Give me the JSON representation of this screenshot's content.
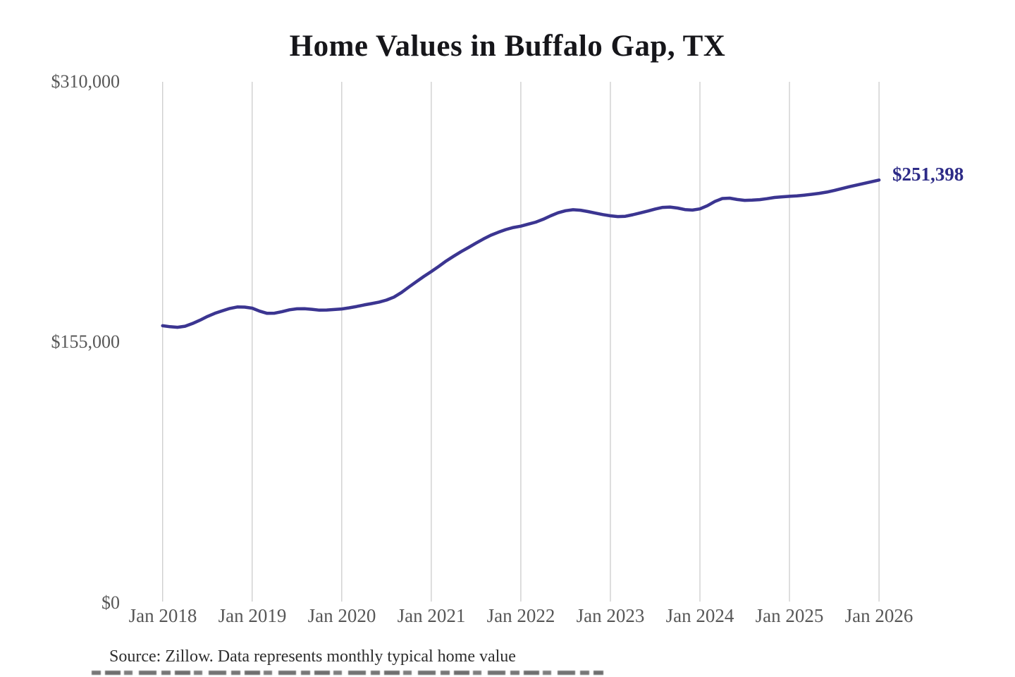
{
  "title": "Home Values in Buffalo Gap, TX",
  "annotation": {
    "final_value_label": "$251,398"
  },
  "source_note": "Source: Zillow. Data represents monthly typical home value",
  "colors": {
    "line": "#3b3591",
    "annotation_text": "#2d2b87",
    "gridline": "#cccccc",
    "axis_text": "#575757",
    "title_text": "#16161a",
    "background": "#ffffff"
  },
  "chart_data": {
    "type": "line",
    "title": "Home Values in Buffalo Gap, TX",
    "x_tick_labels": [
      "Jan 2018",
      "Jan 2019",
      "Jan 2020",
      "Jan 2021",
      "Jan 2022",
      "Jan 2023",
      "Jan 2024",
      "Jan 2025",
      "Jan 2026"
    ],
    "y_tick_labels": [
      "$0",
      "$155,000",
      "$310,000"
    ],
    "ylim": [
      0,
      310000
    ],
    "grid": "vertical-only",
    "legend": "none",
    "end_label": "$251,398",
    "final_value": 251398,
    "series": [
      {
        "name": "Monthly typical home value",
        "x_start": "2018-01",
        "x_end": "2026-01",
        "interval": "monthly",
        "values": [
          164500,
          163900,
          163600,
          164200,
          165800,
          167800,
          170000,
          171900,
          173400,
          174800,
          175700,
          175600,
          175000,
          173200,
          171900,
          172000,
          172900,
          174000,
          174600,
          174700,
          174300,
          173800,
          173900,
          174200,
          174500,
          175200,
          176000,
          176900,
          177700,
          178600,
          179800,
          181600,
          184300,
          187600,
          190800,
          193900,
          196800,
          199900,
          203100,
          206000,
          208700,
          211200,
          213800,
          216300,
          218500,
          220300,
          221900,
          223100,
          223900,
          225100,
          226300,
          228000,
          230100,
          231900,
          233100,
          233700,
          233400,
          232600,
          231700,
          230800,
          230100,
          229600,
          229800,
          230700,
          231800,
          232900,
          234100,
          235100,
          235300,
          234700,
          233800,
          233500,
          234200,
          236100,
          238600,
          240400,
          240600,
          239800,
          239300,
          239400,
          239700,
          240300,
          241000,
          241400,
          241700,
          242000,
          242400,
          242900,
          243500,
          244200,
          245200,
          246300,
          247400,
          248400,
          249400,
          250400,
          251398
        ]
      }
    ]
  }
}
